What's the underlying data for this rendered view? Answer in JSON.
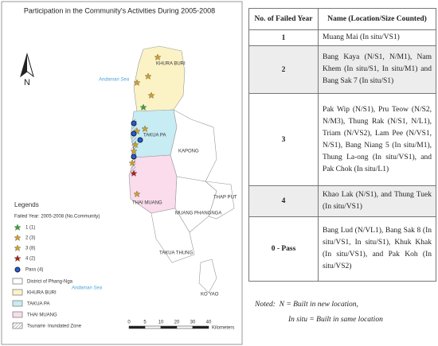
{
  "map": {
    "title": "Participation in the Community's Activities During 2005-2008",
    "sea_labels": [
      "Andaman Sea",
      "Andaman Sea"
    ],
    "district_labels": [
      "KHURA BURI",
      "TAKUA PA",
      "KAPONG",
      "MUANG PHANGNGA",
      "THAP PUT",
      "THAI MUANG",
      "TAKUA THUNG",
      "KO YAO"
    ],
    "north": "N",
    "legend": {
      "title": "Legends",
      "subtitle": "Failed Year: 2005-2008 (No.Community)",
      "markers": [
        "1 (1)",
        "2 (3)",
        "3 (8)",
        "4 (2)",
        "Pass (4)"
      ],
      "areas": [
        "District of Phang-Nga",
        "KHURA BURI",
        "TAKUA PA",
        "THAI MUANG",
        "Tsunami- Inundated Zone"
      ]
    },
    "scale": {
      "ticks": [
        "0",
        "5",
        "10",
        "20",
        "30",
        "40"
      ],
      "unit": "Kilometers"
    }
  },
  "table": {
    "header": [
      "No. of Failed Year",
      "Name (Location/Size Counted)"
    ],
    "rows": [
      [
        "1",
        "Muang Mai (In situ/VS1)"
      ],
      [
        "2",
        "Bang Kaya (N/S1, N/M1), Nam Khem (In situ/S1, In situ/M1) and Bang Sak 7 (In situ/S1)"
      ],
      [
        "3",
        "Pak Wip (N/S1), Pru Teow (N/S2, N/M3), Thung Rak (N/S1, N/L1), Triam (N/VS2), Lam Pee (N/VS1, N/S1), Bang Niang 5 (In situ/M1), Thung La-ong (In situ/VS1), and Pak Chok (In situ/L1)"
      ],
      [
        "4",
        "Khao Lak (N/S1), and Thung Tuek (In situ/VS1)"
      ],
      [
        "0 - Pass",
        "Bang Lud (N/VL1), Bang Sak 8 (In situ/VS1, In situ/S1), Khuk Khak (In situ/VS1), and Pak Koh (In situ/VS2)"
      ]
    ]
  },
  "note": {
    "label": "Noted:",
    "lines": [
      "N = Built in new location,",
      "In situ = Built in same location"
    ]
  }
}
